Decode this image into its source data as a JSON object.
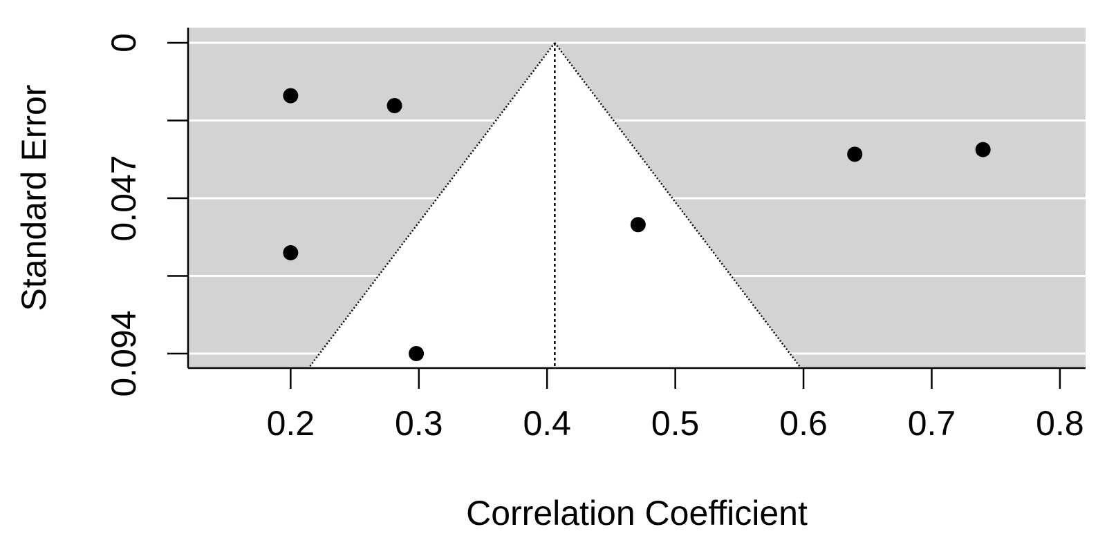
{
  "chart_data": {
    "type": "scatter",
    "subtype": "funnel",
    "title": "",
    "xlabel": "Correlation Coefficient",
    "ylabel": "Standard Error",
    "xlim": [
      0.12,
      0.82
    ],
    "ylim": [
      0.1,
      0
    ],
    "y_reversed": true,
    "xticks": [
      0.2,
      0.3,
      0.4,
      0.5,
      0.6,
      0.7,
      0.8
    ],
    "xtick_labels": [
      "0.2",
      "0.3",
      "0.4",
      "0.5",
      "0.6",
      "0.7",
      "0.8"
    ],
    "yticks": [
      0,
      0.0235,
      0.047,
      0.0705,
      0.094
    ],
    "ytick_labels": [
      "0",
      "",
      "0.047",
      "",
      "0.094"
    ],
    "grid": true,
    "background_color": "#d3d3d3",
    "gridline_color": "#ffffff",
    "funnel": {
      "center": 0.406,
      "apex_se": 0,
      "base_se": 0.1,
      "base_left": 0.214,
      "base_right": 0.598,
      "fill": "#ffffff",
      "line_style": "dotted"
    },
    "points": [
      {
        "x": 0.2,
        "y": 0.016
      },
      {
        "x": 0.281,
        "y": 0.019
      },
      {
        "x": 0.2,
        "y": 0.0635
      },
      {
        "x": 0.298,
        "y": 0.094
      },
      {
        "x": 0.471,
        "y": 0.055
      },
      {
        "x": 0.64,
        "y": 0.0337
      },
      {
        "x": 0.74,
        "y": 0.0323
      }
    ],
    "point_color": "#000000"
  }
}
